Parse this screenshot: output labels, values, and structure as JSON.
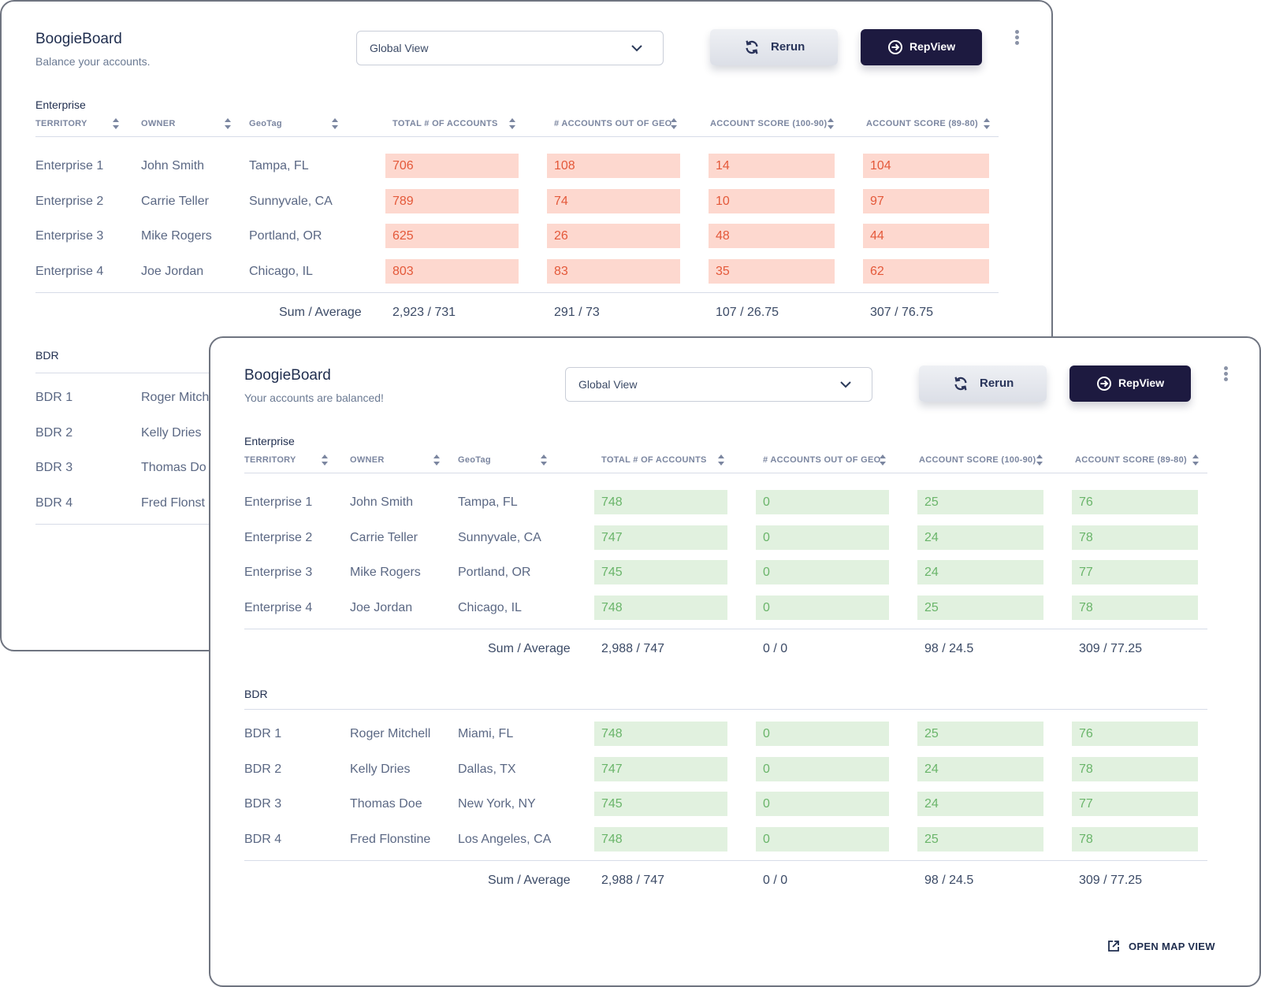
{
  "back_panel": {
    "title": "BoogieBoard",
    "subtitle": "Balance your accounts.",
    "view_select": "Global View",
    "rerun_label": "Rerun",
    "repview_label": "RepView",
    "enterprise": {
      "section": "Enterprise",
      "headers": [
        "TERRITORY",
        "OWNER",
        "GeoTag",
        "TOTAL # OF ACCOUNTS",
        "# ACCOUNTS OUT OF GEO",
        "ACCOUNT SCORE (100-90)",
        "ACCOUNT SCORE (89-80)"
      ],
      "rows": [
        {
          "territory": "Enterprise 1",
          "owner": "John Smith",
          "geo": "Tampa, FL",
          "values": [
            "706",
            "108",
            "14",
            "104"
          ]
        },
        {
          "territory": "Enterprise 2",
          "owner": "Carrie Teller",
          "geo": "Sunnyvale, CA",
          "values": [
            "789",
            "74",
            "10",
            "97"
          ]
        },
        {
          "territory": "Enterprise 3",
          "owner": "Mike Rogers",
          "geo": "Portland, OR",
          "values": [
            "625",
            "26",
            "48",
            "44"
          ]
        },
        {
          "territory": "Enterprise 4",
          "owner": "Joe Jordan",
          "geo": "Chicago, IL",
          "values": [
            "803",
            "83",
            "35",
            "62"
          ]
        }
      ],
      "sum_label": "Sum / Average",
      "sums": [
        "2,923 / 731",
        "291 / 73",
        "107 / 26.75",
        "307 / 76.75"
      ]
    },
    "bdr": {
      "section": "BDR",
      "rows": [
        {
          "territory": "BDR 1",
          "owner": "Roger Mitch"
        },
        {
          "territory": "BDR 2",
          "owner": "Kelly Dries"
        },
        {
          "territory": "BDR 3",
          "owner": "Thomas Do"
        },
        {
          "territory": "BDR 4",
          "owner": "Fred Flonst"
        }
      ]
    }
  },
  "front_panel": {
    "title": "BoogieBoard",
    "subtitle": "Your accounts are balanced!",
    "view_select": "Global View",
    "rerun_label": "Rerun",
    "repview_label": "RepView",
    "enterprise": {
      "section": "Enterprise",
      "headers": [
        "TERRITORY",
        "OWNER",
        "GeoTag",
        "TOTAL # OF ACCOUNTS",
        "# ACCOUNTS OUT OF GEO",
        "ACCOUNT SCORE (100-90)",
        "ACCOUNT SCORE (89-80)"
      ],
      "rows": [
        {
          "territory": "Enterprise 1",
          "owner": "John Smith",
          "geo": "Tampa, FL",
          "values": [
            "748",
            "0",
            "25",
            "76"
          ]
        },
        {
          "territory": "Enterprise 2",
          "owner": "Carrie Teller",
          "geo": "Sunnyvale, CA",
          "values": [
            "747",
            "0",
            "24",
            "78"
          ]
        },
        {
          "territory": "Enterprise 3",
          "owner": "Mike Rogers",
          "geo": "Portland, OR",
          "values": [
            "745",
            "0",
            "24",
            "77"
          ]
        },
        {
          "territory": "Enterprise 4",
          "owner": "Joe Jordan",
          "geo": "Chicago, IL",
          "values": [
            "748",
            "0",
            "25",
            "78"
          ]
        }
      ],
      "sum_label": "Sum / Average",
      "sums": [
        "2,988 / 747",
        "0 / 0",
        "98 / 24.5",
        "309 / 77.25"
      ]
    },
    "bdr": {
      "section": "BDR",
      "rows": [
        {
          "territory": "BDR 1",
          "owner": "Roger Mitchell",
          "geo": "Miami, FL",
          "values": [
            "748",
            "0",
            "25",
            "76"
          ]
        },
        {
          "territory": "BDR 2",
          "owner": "Kelly Dries",
          "geo": "Dallas, TX",
          "values": [
            "747",
            "0",
            "24",
            "78"
          ]
        },
        {
          "territory": "BDR 3",
          "owner": "Thomas Doe",
          "geo": "New York, NY",
          "values": [
            "745",
            "0",
            "24",
            "77"
          ]
        },
        {
          "territory": "BDR 4",
          "owner": "Fred Flonstine",
          "geo": "Los Angeles, CA",
          "values": [
            "748",
            "0",
            "25",
            "78"
          ]
        }
      ],
      "sum_label": "Sum / Average",
      "sums": [
        "2,988 / 747",
        "0 / 0",
        "98 / 24.5",
        "309 / 77.25"
      ]
    },
    "map_link_label": "OPEN MAP VIEW"
  },
  "colors": {
    "over_fill": "#fdd8cf",
    "over_text": "#e4593a",
    "ok_fill": "#e1f1df",
    "ok_text": "#6ab56a",
    "primary_button": "#1d1a40"
  },
  "icons": [
    "chevron-down-icon",
    "refresh-icon",
    "arrow-circle-right-icon",
    "kebab-menu-icon",
    "sort-icon",
    "external-link-icon"
  ]
}
